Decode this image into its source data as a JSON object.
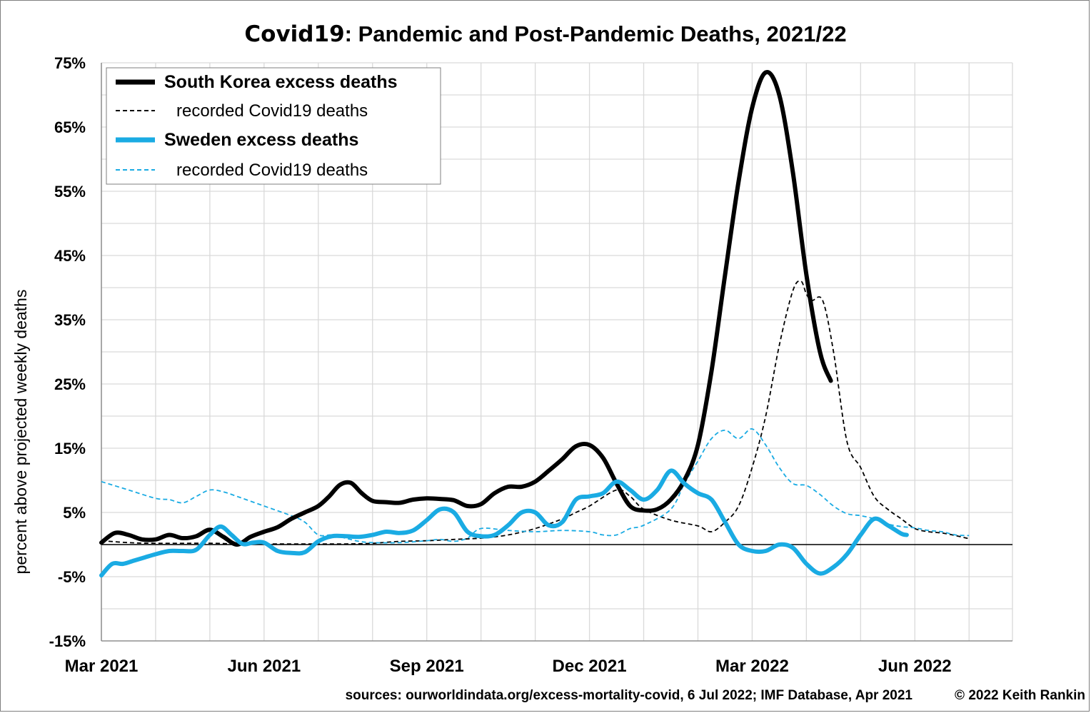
{
  "chart_data": {
    "type": "line",
    "title_bold": "Covid19",
    "title_rest": ": Pandemic and Post-Pandemic Deaths, 2021/22",
    "ylabel": "percent above projected weekly deaths",
    "xlabel": "",
    "ylim": [
      -15,
      75
    ],
    "y_ticks": [
      "75%",
      "65%",
      "55%",
      "45%",
      "35%",
      "25%",
      "15%",
      "5%",
      "-5%",
      "-15%"
    ],
    "y_tick_values": [
      75,
      65,
      55,
      45,
      35,
      25,
      15,
      5,
      -5,
      -15
    ],
    "x_tick_labels": [
      "Mar 2021",
      "Jun 2021",
      "Sep 2021",
      "Dec 2021",
      "Mar 2022",
      "Jun 2022"
    ],
    "x_tick_months": [
      0,
      3,
      6,
      9,
      12,
      15
    ],
    "x_range_months": [
      0,
      16.8
    ],
    "grid": true,
    "legend_position": "top-left",
    "source_note": "sources: ourworldindata.org/excess-mortality-covid, 6 Jul 2022;  IMF Database, Apr 2021",
    "copyright": "© 2022 Keith Rankin",
    "series": [
      {
        "name": "South Korea excess deaths",
        "color": "#000000",
        "style": "solid-thick",
        "points": [
          [
            0.0,
            0.3
          ],
          [
            0.25,
            1.8
          ],
          [
            0.5,
            1.5
          ],
          [
            0.75,
            0.8
          ],
          [
            1.0,
            0.8
          ],
          [
            1.25,
            1.5
          ],
          [
            1.5,
            1.0
          ],
          [
            1.75,
            1.3
          ],
          [
            2.0,
            2.3
          ],
          [
            2.25,
            1.2
          ],
          [
            2.5,
            0.0
          ],
          [
            2.75,
            1.2
          ],
          [
            3.0,
            2.0
          ],
          [
            3.25,
            2.7
          ],
          [
            3.5,
            4.0
          ],
          [
            3.75,
            5.0
          ],
          [
            4.0,
            6.0
          ],
          [
            4.2,
            7.5
          ],
          [
            4.4,
            9.3
          ],
          [
            4.6,
            9.6
          ],
          [
            4.8,
            8.0
          ],
          [
            5.0,
            6.8
          ],
          [
            5.25,
            6.6
          ],
          [
            5.5,
            6.5
          ],
          [
            5.75,
            7.0
          ],
          [
            6.0,
            7.2
          ],
          [
            6.25,
            7.1
          ],
          [
            6.5,
            6.9
          ],
          [
            6.75,
            6.0
          ],
          [
            7.0,
            6.3
          ],
          [
            7.25,
            8.0
          ],
          [
            7.5,
            9.0
          ],
          [
            7.75,
            9.0
          ],
          [
            8.0,
            9.8
          ],
          [
            8.25,
            11.5
          ],
          [
            8.5,
            13.3
          ],
          [
            8.75,
            15.3
          ],
          [
            9.0,
            15.5
          ],
          [
            9.25,
            13.5
          ],
          [
            9.5,
            9.5
          ],
          [
            9.75,
            6.0
          ],
          [
            10.0,
            5.3
          ],
          [
            10.25,
            5.5
          ],
          [
            10.5,
            7.0
          ],
          [
            10.75,
            10.0
          ],
          [
            11.0,
            15.5
          ],
          [
            11.25,
            27.0
          ],
          [
            11.5,
            42.0
          ],
          [
            11.75,
            56.5
          ],
          [
            12.0,
            68.0
          ],
          [
            12.25,
            73.5
          ],
          [
            12.5,
            70.0
          ],
          [
            12.75,
            58.0
          ],
          [
            13.0,
            42.0
          ],
          [
            13.25,
            30.0
          ],
          [
            13.45,
            25.5
          ]
        ]
      },
      {
        "name": "recorded Covid19 deaths",
        "color": "#000000",
        "style": "dashed",
        "points": [
          [
            0.0,
            0.6
          ],
          [
            0.5,
            0.3
          ],
          [
            1.0,
            0.2
          ],
          [
            2.0,
            0.2
          ],
          [
            2.5,
            0.1
          ],
          [
            3.0,
            0.1
          ],
          [
            3.5,
            0.1
          ],
          [
            4.0,
            0.1
          ],
          [
            4.5,
            0.1
          ],
          [
            5.0,
            0.2
          ],
          [
            5.5,
            0.5
          ],
          [
            6.0,
            0.6
          ],
          [
            6.5,
            0.8
          ],
          [
            7.0,
            1.0
          ],
          [
            7.5,
            1.5
          ],
          [
            8.0,
            2.5
          ],
          [
            8.5,
            4.0
          ],
          [
            8.75,
            5.0
          ],
          [
            9.0,
            6.0
          ],
          [
            9.5,
            8.5
          ],
          [
            9.75,
            7.5
          ],
          [
            10.0,
            5.5
          ],
          [
            10.5,
            3.8
          ],
          [
            11.0,
            2.9
          ],
          [
            11.25,
            2.0
          ],
          [
            11.5,
            3.5
          ],
          [
            11.75,
            6.0
          ],
          [
            12.0,
            12.0
          ],
          [
            12.25,
            20.0
          ],
          [
            12.5,
            31.0
          ],
          [
            12.75,
            39.5
          ],
          [
            12.9,
            41.0
          ],
          [
            13.0,
            39.0
          ],
          [
            13.1,
            38.0
          ],
          [
            13.3,
            38.0
          ],
          [
            13.5,
            30.0
          ],
          [
            13.75,
            16.0
          ],
          [
            14.0,
            12.0
          ],
          [
            14.25,
            7.5
          ],
          [
            14.5,
            5.5
          ],
          [
            14.75,
            4.0
          ],
          [
            15.0,
            2.5
          ],
          [
            15.25,
            2.0
          ],
          [
            15.5,
            1.8
          ],
          [
            15.75,
            1.4
          ],
          [
            16.0,
            0.9
          ]
        ]
      },
      {
        "name": "Sweden excess deaths",
        "color": "#1aabe3",
        "style": "solid-thick",
        "points": [
          [
            0.0,
            -4.8
          ],
          [
            0.2,
            -3.0
          ],
          [
            0.4,
            -3.0
          ],
          [
            0.6,
            -2.5
          ],
          [
            0.8,
            -2.0
          ],
          [
            1.0,
            -1.5
          ],
          [
            1.25,
            -1.0
          ],
          [
            1.5,
            -1.0
          ],
          [
            1.75,
            -0.8
          ],
          [
            2.0,
            1.5
          ],
          [
            2.2,
            2.8
          ],
          [
            2.4,
            1.5
          ],
          [
            2.6,
            0.1
          ],
          [
            2.8,
            0.3
          ],
          [
            3.0,
            0.3
          ],
          [
            3.25,
            -1.0
          ],
          [
            3.5,
            -1.3
          ],
          [
            3.75,
            -1.2
          ],
          [
            4.0,
            0.5
          ],
          [
            4.25,
            1.3
          ],
          [
            4.5,
            1.3
          ],
          [
            4.75,
            1.2
          ],
          [
            5.0,
            1.5
          ],
          [
            5.25,
            2.0
          ],
          [
            5.5,
            1.8
          ],
          [
            5.75,
            2.2
          ],
          [
            6.0,
            3.8
          ],
          [
            6.25,
            5.5
          ],
          [
            6.5,
            5.0
          ],
          [
            6.75,
            2.0
          ],
          [
            7.0,
            1.3
          ],
          [
            7.25,
            1.5
          ],
          [
            7.5,
            3.0
          ],
          [
            7.75,
            5.0
          ],
          [
            8.0,
            5.0
          ],
          [
            8.25,
            3.0
          ],
          [
            8.5,
            3.5
          ],
          [
            8.75,
            7.0
          ],
          [
            9.0,
            7.5
          ],
          [
            9.25,
            8.0
          ],
          [
            9.5,
            9.8
          ],
          [
            9.75,
            8.5
          ],
          [
            10.0,
            7.0
          ],
          [
            10.25,
            8.5
          ],
          [
            10.5,
            11.5
          ],
          [
            10.75,
            9.5
          ],
          [
            11.0,
            8.0
          ],
          [
            11.25,
            7.0
          ],
          [
            11.5,
            3.5
          ],
          [
            11.75,
            0.0
          ],
          [
            12.0,
            -1.0
          ],
          [
            12.25,
            -1.0
          ],
          [
            12.5,
            0.0
          ],
          [
            12.75,
            -0.5
          ],
          [
            13.0,
            -3.0
          ],
          [
            13.25,
            -4.5
          ],
          [
            13.5,
            -3.5
          ],
          [
            13.75,
            -1.5
          ],
          [
            14.0,
            1.5
          ],
          [
            14.25,
            4.0
          ],
          [
            14.5,
            3.0
          ],
          [
            14.75,
            1.7
          ],
          [
            14.85,
            1.5
          ]
        ]
      },
      {
        "name": "recorded Covid19 deaths",
        "color": "#1aabe3",
        "style": "dashed",
        "points": [
          [
            0.0,
            9.8
          ],
          [
            0.5,
            8.5
          ],
          [
            1.0,
            7.2
          ],
          [
            1.25,
            7.0
          ],
          [
            1.5,
            6.5
          ],
          [
            1.75,
            7.5
          ],
          [
            2.0,
            8.5
          ],
          [
            2.25,
            8.2
          ],
          [
            2.5,
            7.5
          ],
          [
            3.0,
            6.0
          ],
          [
            3.5,
            4.5
          ],
          [
            3.75,
            3.5
          ],
          [
            4.0,
            1.5
          ],
          [
            4.25,
            1.5
          ],
          [
            4.5,
            1.0
          ],
          [
            4.75,
            0.5
          ],
          [
            5.0,
            0.3
          ],
          [
            5.5,
            0.3
          ],
          [
            6.0,
            0.6
          ],
          [
            6.25,
            0.8
          ],
          [
            6.5,
            0.5
          ],
          [
            6.75,
            1.0
          ],
          [
            7.0,
            2.5
          ],
          [
            7.5,
            2.2
          ],
          [
            8.0,
            2.0
          ],
          [
            8.5,
            2.2
          ],
          [
            9.0,
            2.0
          ],
          [
            9.25,
            1.5
          ],
          [
            9.5,
            1.5
          ],
          [
            9.75,
            2.5
          ],
          [
            10.0,
            3.0
          ],
          [
            10.5,
            5.5
          ],
          [
            10.75,
            9.5
          ],
          [
            11.0,
            13.0
          ],
          [
            11.25,
            16.5
          ],
          [
            11.5,
            17.8
          ],
          [
            11.75,
            16.5
          ],
          [
            12.0,
            18.0
          ],
          [
            12.25,
            15.5
          ],
          [
            12.5,
            12.0
          ],
          [
            12.75,
            9.5
          ],
          [
            13.0,
            9.2
          ],
          [
            13.25,
            7.8
          ],
          [
            13.5,
            6.0
          ],
          [
            13.75,
            4.8
          ],
          [
            14.0,
            4.5
          ],
          [
            14.25,
            4.0
          ],
          [
            14.5,
            3.2
          ],
          [
            14.75,
            2.8
          ],
          [
            15.0,
            2.6
          ],
          [
            15.25,
            2.2
          ],
          [
            15.5,
            2.0
          ],
          [
            15.75,
            1.5
          ],
          [
            16.0,
            1.4
          ]
        ]
      }
    ]
  }
}
